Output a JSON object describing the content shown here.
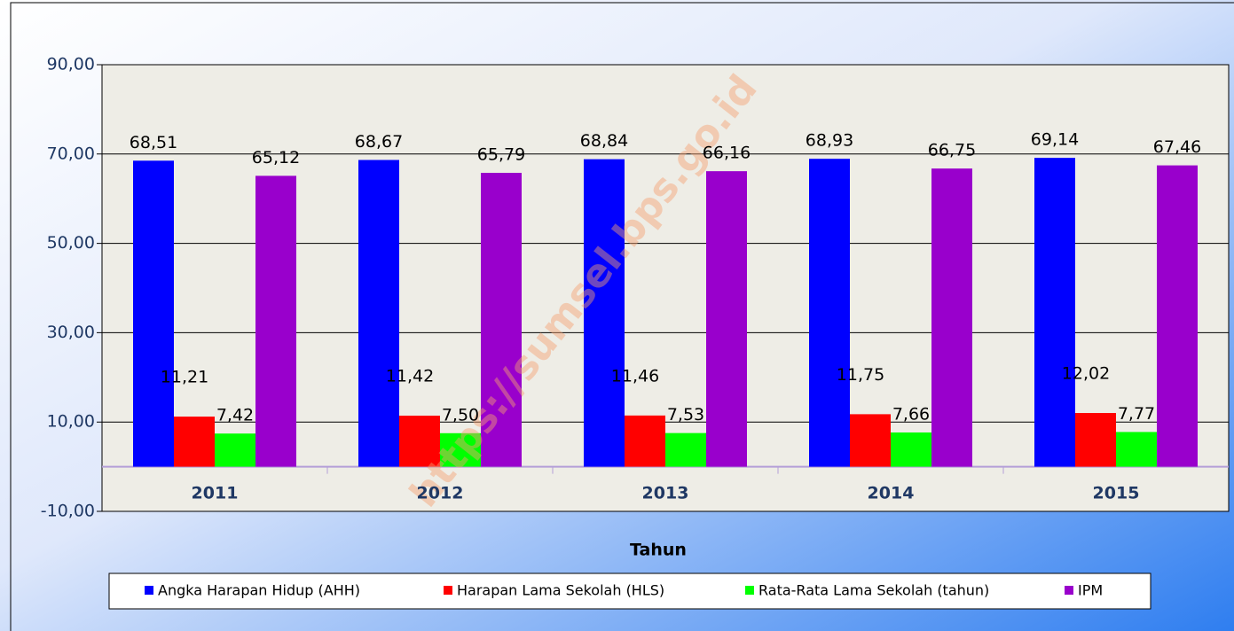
{
  "chart_data": {
    "type": "bar",
    "x_label": "Tahun",
    "watermark": "https://sumsel.bps.go.id",
    "categories": [
      "2011",
      "2012",
      "2013",
      "2014",
      "2015"
    ],
    "series": [
      {
        "name": "Angka Harapan Hidup (AHH)",
        "color": "#0000ff",
        "values": [
          68.51,
          68.67,
          68.84,
          68.93,
          69.14
        ],
        "value_labels": [
          "68,51",
          "68,67",
          "68,84",
          "68,93",
          "69,14"
        ]
      },
      {
        "name": "Harapan Lama Sekolah (HLS)",
        "color": "#ff0000",
        "values": [
          11.21,
          11.42,
          11.46,
          11.75,
          12.02
        ],
        "value_labels": [
          "11,21",
          "11,42",
          "11,46",
          "11,75",
          "12,02"
        ]
      },
      {
        "name": "Rata-Rata Lama Sekolah (tahun)",
        "color": "#00ff00",
        "values": [
          7.42,
          7.5,
          7.53,
          7.66,
          7.77
        ],
        "value_labels": [
          "7,42",
          "7,50",
          "7,53",
          "7,66",
          "7,77"
        ]
      },
      {
        "name": "IPM",
        "color": "#9900cc",
        "values": [
          65.12,
          65.79,
          66.16,
          66.75,
          67.46
        ],
        "value_labels": [
          "65,12",
          "65,79",
          "66,16",
          "66,75",
          "67,46"
        ]
      }
    ],
    "ylim": [
      -10,
      90
    ],
    "yticks": [
      {
        "value": -10,
        "label": "-10,00"
      },
      {
        "value": 10,
        "label": "10,00"
      },
      {
        "value": 30,
        "label": "30,00"
      },
      {
        "value": 50,
        "label": "50,00"
      },
      {
        "value": 70,
        "label": "70,00"
      },
      {
        "value": 90,
        "label": "90,00"
      }
    ],
    "grid": true,
    "legend": "bottom"
  }
}
